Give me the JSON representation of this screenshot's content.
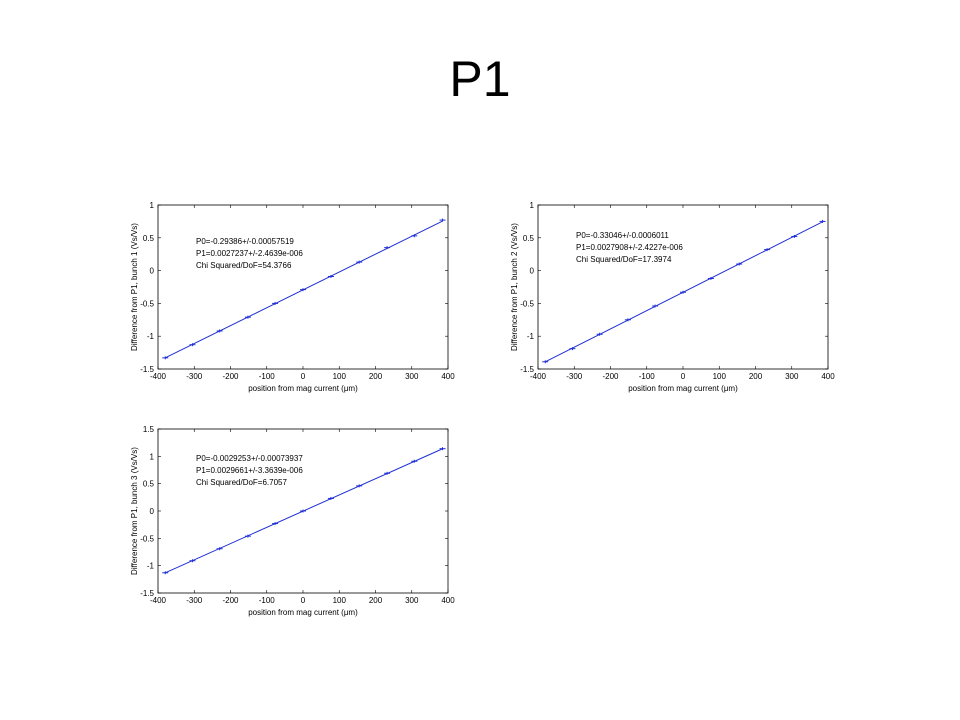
{
  "slide": {
    "title": "P1"
  },
  "colors": {
    "line": "#1f2fd6",
    "point": "#1f2fd6",
    "axis": "#000000"
  },
  "chart_data": [
    {
      "type": "scatter",
      "xlabel": "position from mag current (μm)",
      "ylabel": "Difference from P1, bunch 1 (Vs/Vs)",
      "xlim": [
        -400,
        400
      ],
      "ylim": [
        -1.5,
        1
      ],
      "xticks": [
        -400,
        -300,
        -200,
        -100,
        0,
        100,
        200,
        300,
        400
      ],
      "yticks": [
        -1.5,
        -1,
        -0.5,
        0,
        0.5,
        1
      ],
      "xtick_labels": [
        "-400",
        "-300",
        "-200",
        "-100",
        "0",
        "100",
        "200",
        "300",
        "400"
      ],
      "ytick_labels": [
        "-1.5",
        "-1",
        "-0.5",
        "0",
        "0.5",
        "1"
      ],
      "annotations": [
        "P0=-0.29386+/-0.00057519",
        "P1=0.0027237+/-2.4639e-006",
        "Chi Squared/DoF=54.3766"
      ],
      "fit": {
        "intercept": -0.29386,
        "slope": 0.0027237
      },
      "points": {
        "x": [
          -380,
          -305,
          -230,
          -152,
          -77,
          0,
          77,
          155,
          232,
          307,
          385
        ],
        "y": [
          -1.33,
          -1.13,
          -0.92,
          -0.71,
          -0.5,
          -0.29,
          -0.09,
          0.13,
          0.35,
          0.53,
          0.77
        ]
      }
    },
    {
      "type": "scatter",
      "xlabel": "position from mag current (μm)",
      "ylabel": "Difference from P1, bunch 2 (Vs/Vs)",
      "xlim": [
        -400,
        400
      ],
      "ylim": [
        -1.5,
        1
      ],
      "xticks": [
        -400,
        -300,
        -200,
        -100,
        0,
        100,
        200,
        300,
        400
      ],
      "yticks": [
        -1.5,
        -1,
        -0.5,
        0,
        0.5,
        1
      ],
      "xtick_labels": [
        "-400",
        "-300",
        "-200",
        "-100",
        "0",
        "100",
        "200",
        "300",
        "400"
      ],
      "ytick_labels": [
        "-1.5",
        "-1",
        "-0.5",
        "0",
        "0.5",
        "1"
      ],
      "annotations": [
        "P0=-0.33046+/-0.0006011",
        "P1=0.0027908+/-2.4227e-006",
        "Chi Squared/DoF=17.3974"
      ],
      "fit": {
        "intercept": -0.33046,
        "slope": 0.0027908
      },
      "points": {
        "x": [
          -380,
          -305,
          -230,
          -152,
          -77,
          0,
          77,
          155,
          232,
          307,
          385
        ],
        "y": [
          -1.39,
          -1.19,
          -0.97,
          -0.75,
          -0.54,
          -0.33,
          -0.12,
          0.1,
          0.32,
          0.52,
          0.75
        ]
      }
    },
    {
      "type": "scatter",
      "xlabel": "position from mag current (μm)",
      "ylabel": "Difference from P1, bunch 3 (Vs/Vs)",
      "xlim": [
        -400,
        400
      ],
      "ylim": [
        -1.5,
        1.5
      ],
      "xticks": [
        -400,
        -300,
        -200,
        -100,
        0,
        100,
        200,
        300,
        400
      ],
      "yticks": [
        -1.5,
        -1,
        -0.5,
        0,
        0.5,
        1,
        1.5
      ],
      "xtick_labels": [
        "-400",
        "-300",
        "-200",
        "-100",
        "0",
        "100",
        "200",
        "300",
        "400"
      ],
      "ytick_labels": [
        "-1.5",
        "-1",
        "-0.5",
        "0",
        "0.5",
        "1",
        "1.5"
      ],
      "annotations": [
        "P0=-0.0029253+/-0.00073937",
        "P1=0.0029661+/-3.3639e-006",
        "Chi Squared/DoF=6.7057"
      ],
      "fit": {
        "intercept": -0.0029253,
        "slope": 0.0029661
      },
      "points": {
        "x": [
          -380,
          -305,
          -230,
          -152,
          -77,
          0,
          77,
          155,
          232,
          307,
          385
        ],
        "y": [
          -1.13,
          -0.91,
          -0.69,
          -0.46,
          -0.23,
          0.0,
          0.23,
          0.46,
          0.69,
          0.91,
          1.14
        ]
      }
    }
  ]
}
